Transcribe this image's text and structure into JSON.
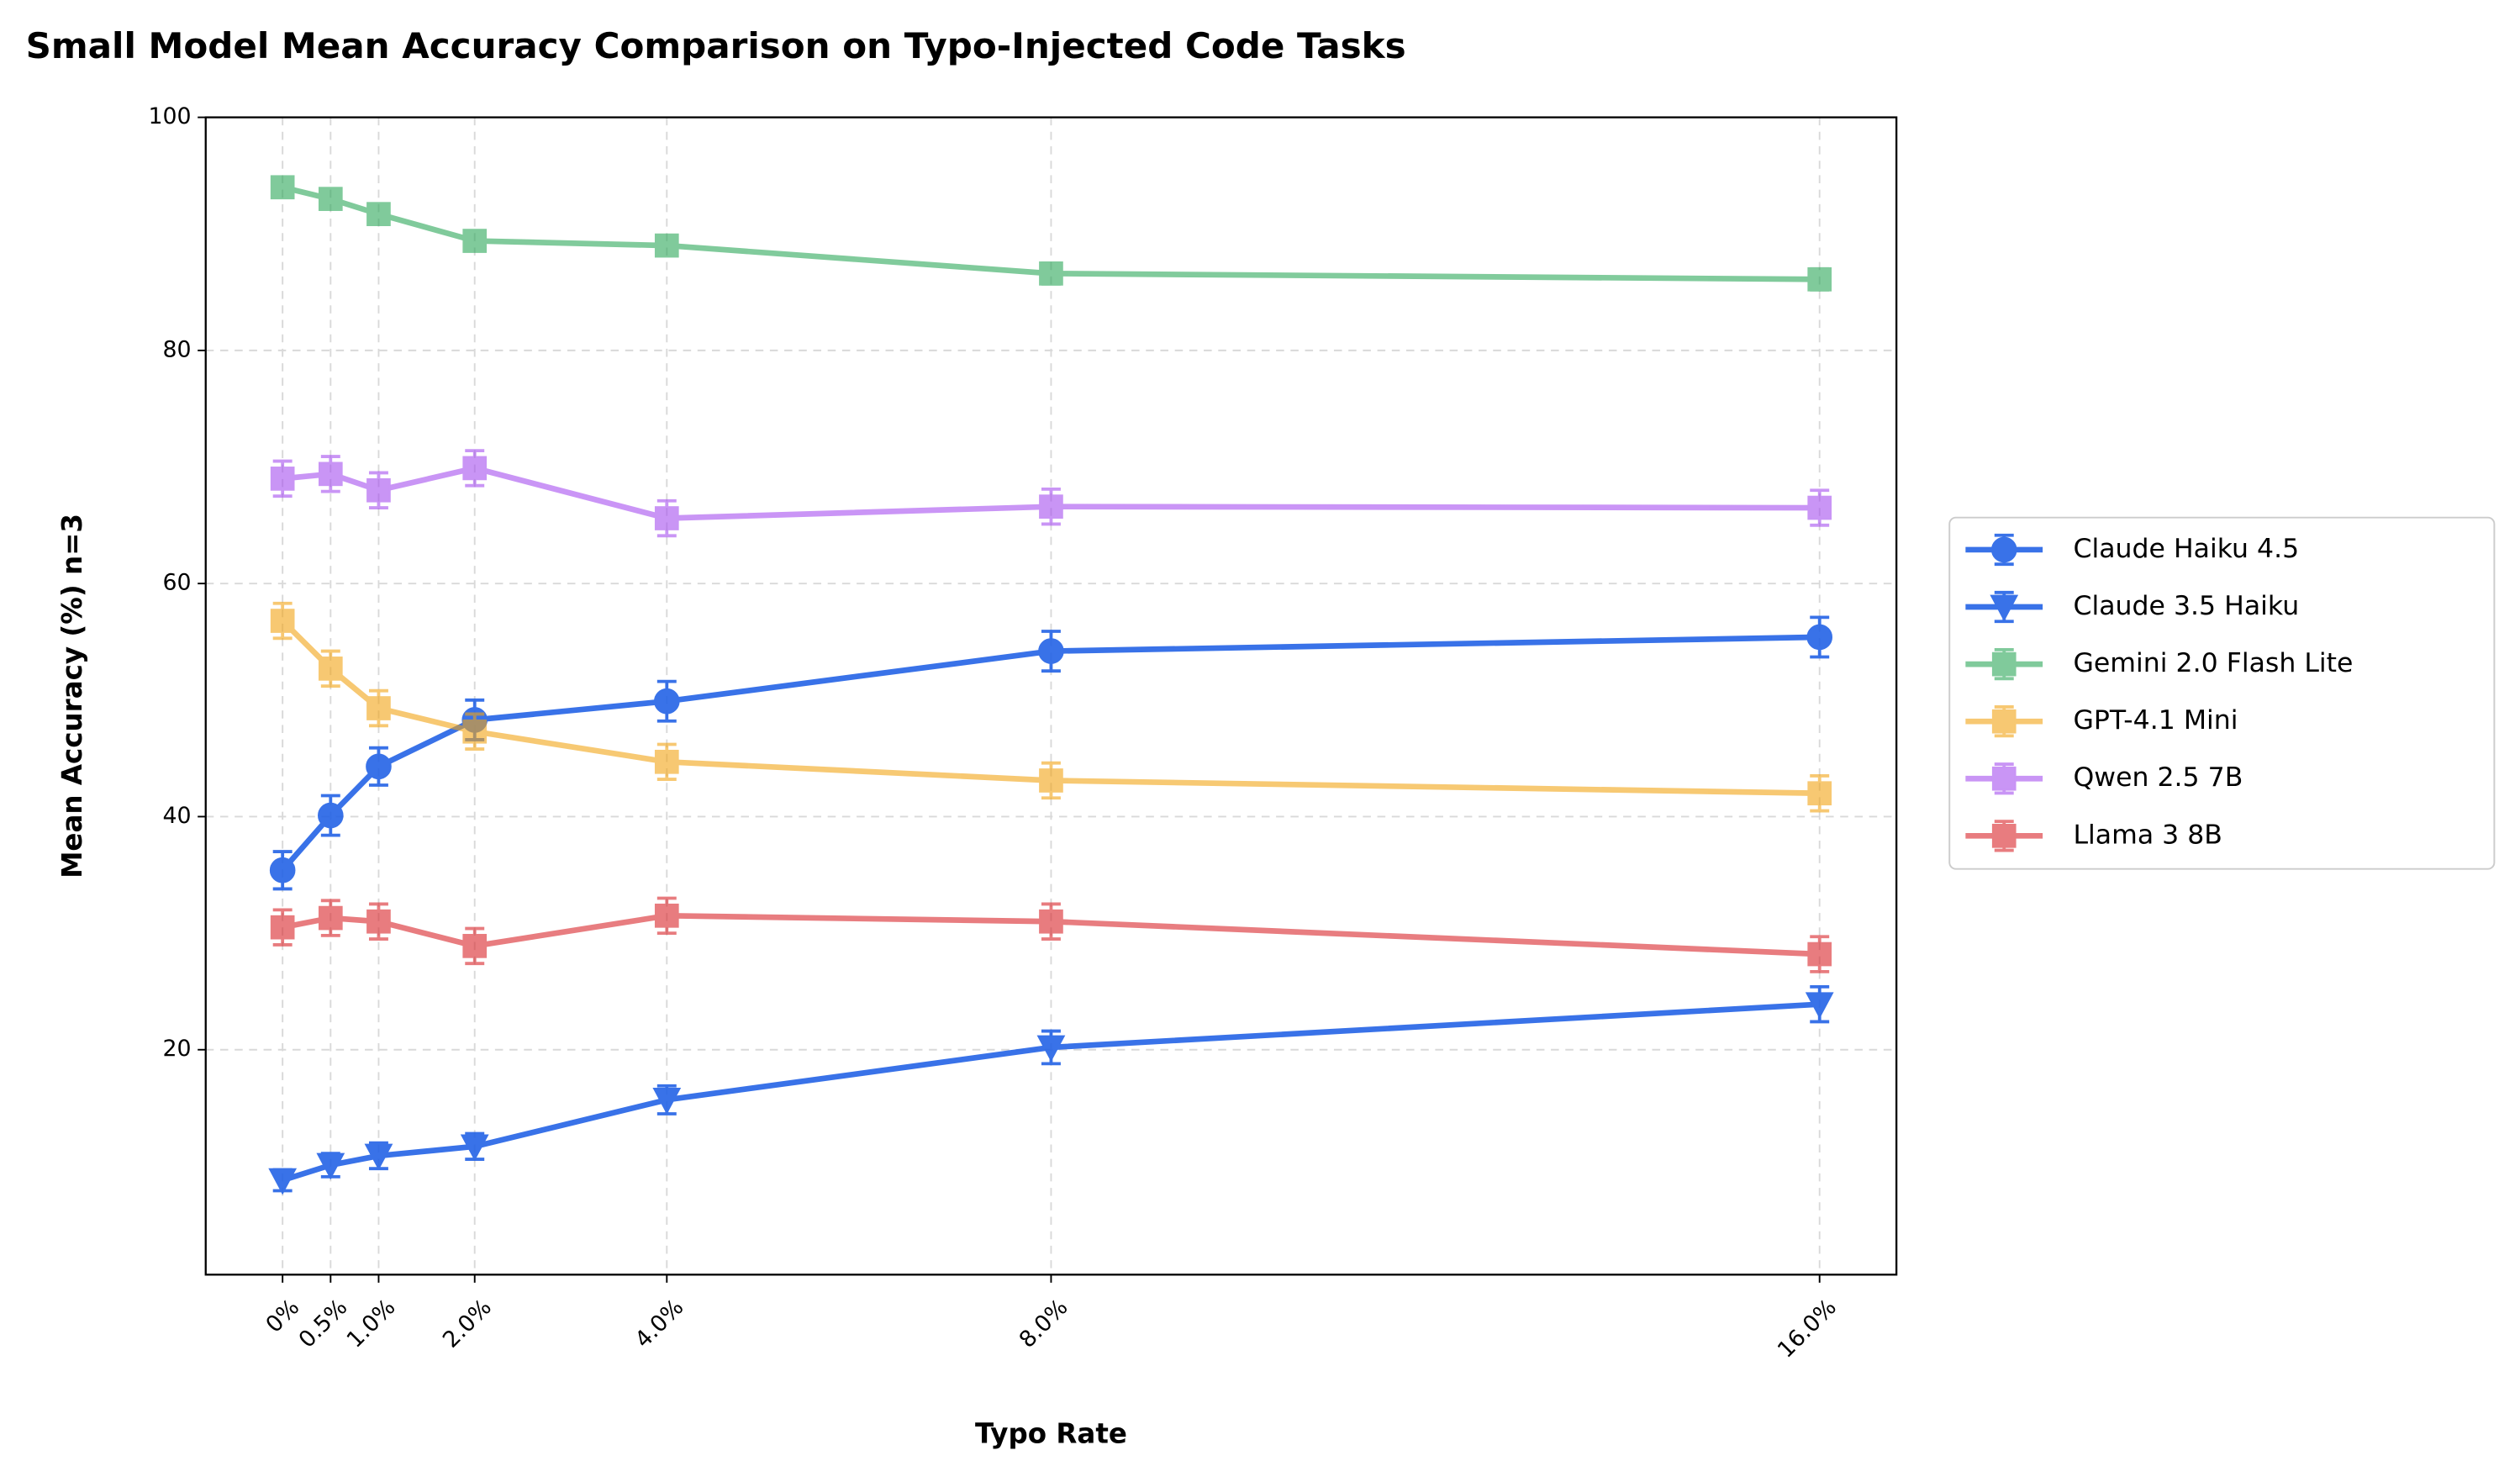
{
  "chart_data": {
    "type": "line",
    "title": "Small Model Mean Accuracy Comparison on Typo-Injected Code Tasks",
    "xlabel": "Typo Rate",
    "ylabel": "Mean Accuracy (%) n=3",
    "x": [
      0,
      0.5,
      1,
      2,
      4,
      8,
      16
    ],
    "xlim": [
      -0.8,
      16.8
    ],
    "xticks": [
      {
        "value": 0,
        "label": "0%"
      },
      {
        "value": 0.5,
        "label": "0.5%"
      },
      {
        "value": 1,
        "label": "1.0%"
      },
      {
        "value": 2,
        "label": "2.0%"
      },
      {
        "value": 4,
        "label": "4.0%"
      },
      {
        "value": 8,
        "label": "8.0%"
      },
      {
        "value": 16,
        "label": "16.0%"
      }
    ],
    "ylim": [
      0.7,
      100
    ],
    "yticks": [
      20,
      40,
      60,
      80,
      100
    ],
    "grid": true,
    "legend": "outside right",
    "series": [
      {
        "name": "Claude Haiku 4.5",
        "color": "#2463e6",
        "alpha": 0.9,
        "marker": "o",
        "values": [
          35.4,
          40.1,
          44.3,
          48.3,
          49.9,
          54.2,
          55.4
        ],
        "errors": [
          1.6,
          1.7,
          1.6,
          1.7,
          1.7,
          1.7,
          1.7
        ]
      },
      {
        "name": "Claude 3.5 Haiku",
        "color": "#2463e6",
        "alpha": 0.9,
        "marker": "v",
        "values": [
          8.8,
          10.1,
          10.9,
          11.7,
          15.7,
          20.2,
          23.9
        ],
        "errors": [
          0.9,
          1.0,
          1.1,
          1.1,
          1.2,
          1.4,
          1.5
        ]
      },
      {
        "name": "Gemini 2.0 Flash Lite",
        "color": "#2da85a",
        "alpha": 0.6,
        "marker": "s",
        "values": [
          94.0,
          93.0,
          91.7,
          89.4,
          89.0,
          86.6,
          86.1
        ],
        "errors": [
          0.8,
          0.8,
          0.8,
          0.8,
          0.8,
          0.9,
          0.9
        ]
      },
      {
        "name": "GPT-4.1 Mini",
        "color": "#f2a516",
        "alpha": 0.6,
        "marker": "s",
        "values": [
          56.8,
          52.7,
          49.3,
          47.3,
          44.7,
          43.1,
          42.0
        ],
        "errors": [
          1.5,
          1.5,
          1.5,
          1.5,
          1.5,
          1.5,
          1.5
        ]
      },
      {
        "name": "Qwen 2.5 7B",
        "color": "#a64ff0",
        "alpha": 0.6,
        "marker": "s",
        "values": [
          69.0,
          69.4,
          68.0,
          69.9,
          65.6,
          66.6,
          66.5
        ],
        "errors": [
          1.5,
          1.5,
          1.5,
          1.5,
          1.5,
          1.5,
          1.5
        ]
      },
      {
        "name": "Llama 3 8B",
        "color": "#d9262b",
        "alpha": 0.6,
        "marker": "s",
        "values": [
          30.5,
          31.3,
          31.0,
          28.9,
          31.5,
          31.0,
          28.2
        ],
        "errors": [
          1.5,
          1.5,
          1.5,
          1.5,
          1.5,
          1.5,
          1.5
        ]
      }
    ]
  }
}
